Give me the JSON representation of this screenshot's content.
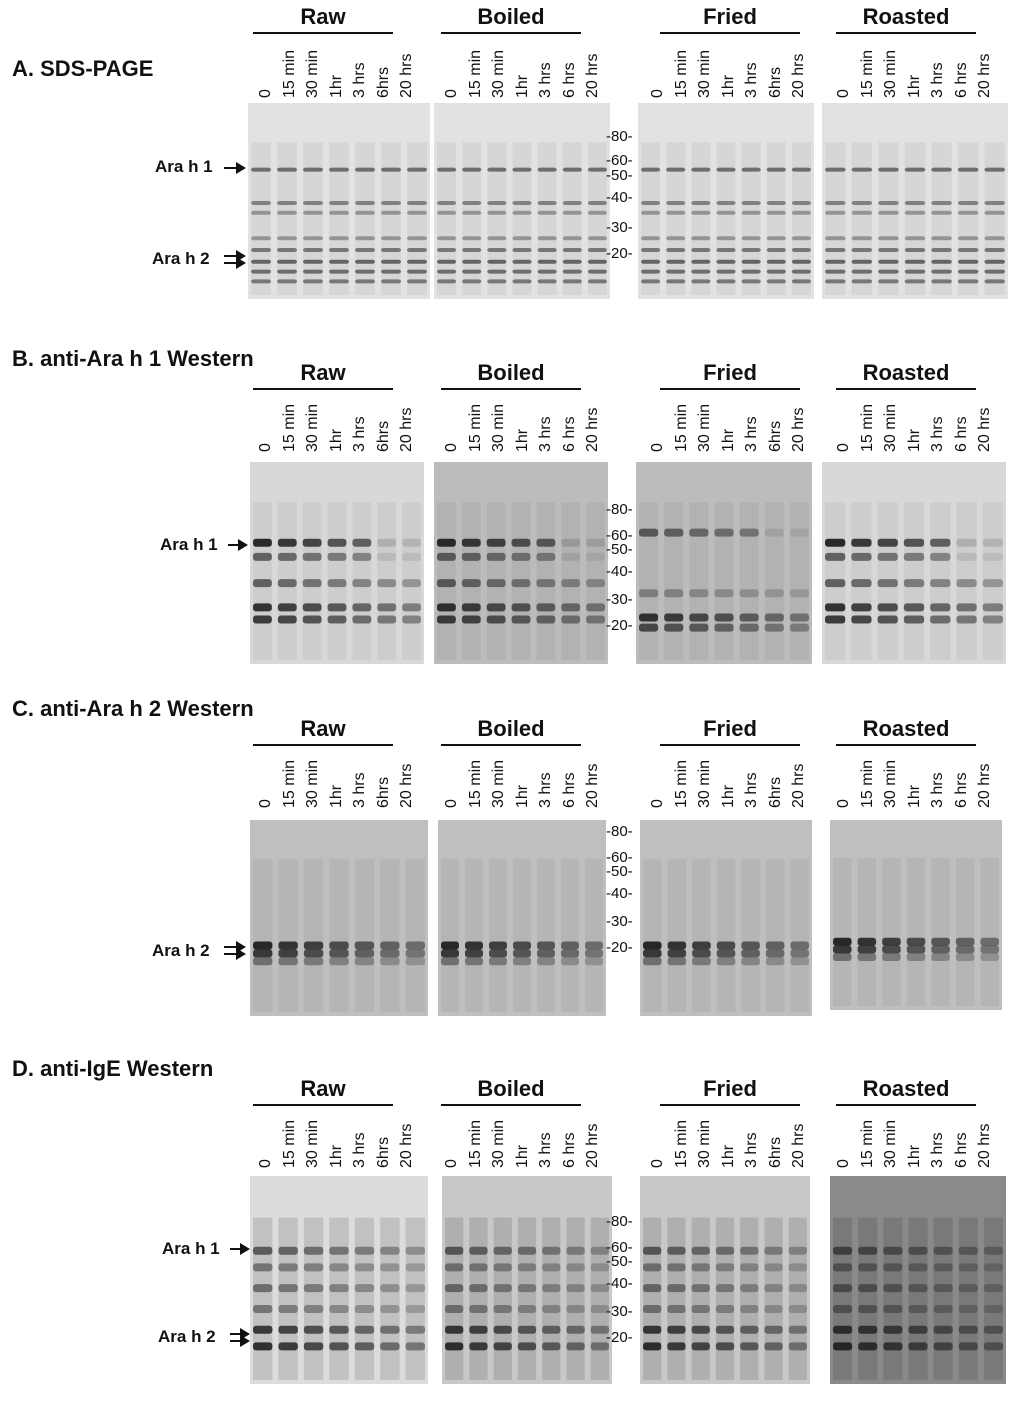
{
  "panels": [
    {
      "title": "A. SDS-PAGE",
      "protein_labels": [
        "Ara h 1",
        "Ara h 2"
      ]
    },
    {
      "title": "B. anti-Ara h 1 Western",
      "protein_labels": [
        "Ara h 1"
      ]
    },
    {
      "title": "C. anti-Ara h 2 Western",
      "protein_labels": [
        "Ara h 2"
      ]
    },
    {
      "title": "D. anti-IgE Western",
      "protein_labels": [
        "Ara h 1",
        "Ara h 2"
      ]
    }
  ],
  "groups": [
    "Raw",
    "Boiled",
    "Fried",
    "Roasted"
  ],
  "lane_sets": {
    "A": [
      [
        "0",
        "15 min",
        "30 min",
        "1hr",
        "3 hrs",
        "6hrs",
        "20 hrs"
      ],
      [
        "0",
        "15 min",
        "30 min",
        "1hr",
        "3 hrs",
        "6 hrs",
        "20 hrs"
      ],
      [
        "0",
        "15 min",
        "30 min",
        "1hr",
        "3 hrs",
        "6hrs",
        "20 hrs"
      ],
      [
        "0",
        "15 min",
        "30 min",
        "1hr",
        "3 hrs",
        "6 hrs",
        "20 hrs"
      ]
    ],
    "B": [
      [
        "0",
        "15 min",
        "30 min",
        "1hr",
        "3 hrs",
        "6hrs",
        "20 hrs"
      ],
      [
        "0",
        "15 min",
        "30 min",
        "1hr",
        "3 hrs",
        "6 hrs",
        "20 hrs"
      ],
      [
        "0",
        "15 min",
        "30 min",
        "1hr",
        "3 hrs",
        "6hrs",
        "20 hrs"
      ],
      [
        "0",
        "15 min",
        "30 min",
        "1hr",
        "3 hrs",
        "6 hrs",
        "20 hrs"
      ]
    ],
    "C": [
      [
        "0",
        "15 min",
        "30 min",
        "1hr",
        "3 hrs",
        "6hrs",
        "20 hrs"
      ],
      [
        "0",
        "15 min",
        "30 min",
        "1hr",
        "3 hrs",
        "6 hrs",
        "20 hrs"
      ],
      [
        "0",
        "15 min",
        "30 min",
        "1hr",
        "3 hrs",
        "6hrs",
        "20 hrs"
      ],
      [
        "0",
        "15 min",
        "30 min",
        "1hr",
        "3 hrs",
        "6 hrs",
        "20 hrs"
      ]
    ],
    "D": [
      [
        "0",
        "15 min",
        "30 min",
        "1hr",
        "3 hrs",
        "6hrs",
        "20 hrs"
      ],
      [
        "0",
        "15 min",
        "30 min",
        "1hr",
        "3 hrs",
        "6 hrs",
        "20 hrs"
      ],
      [
        "0",
        "15 min",
        "30 min",
        "1hr",
        "3 hrs",
        "6hrs",
        "20 hrs"
      ],
      [
        "0",
        "15 min",
        "30 min",
        "1hr",
        "3 hrs",
        "6 hrs",
        "20 hrs"
      ]
    ]
  },
  "mw_markers": [
    "-80-",
    "-60-",
    "-50-",
    "-40-",
    "-30-",
    "-20-"
  ],
  "colors": {
    "ink": "#111111",
    "gel_light": "#e4e4e4",
    "gel_grey": "#bdbdbd",
    "band": "#1a1a1a"
  }
}
